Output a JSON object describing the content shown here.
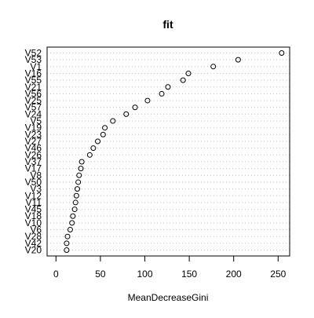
{
  "chart_data": {
    "type": "scatter",
    "title": "fit",
    "xlabel": "MeanDecreaseGini",
    "ylabel": "",
    "xlim": [
      -10,
      263
    ],
    "xticks": [
      0,
      50,
      100,
      150,
      200,
      250
    ],
    "grid": "dotted horizontal guide lines per variable",
    "legend": "none",
    "categories": [
      "V52",
      "V53",
      "V1",
      "V16",
      "V55",
      "V21",
      "V56",
      "V25",
      "V57",
      "V24",
      "V5",
      "V19",
      "V23",
      "V27",
      "V46",
      "V26",
      "V37",
      "V17",
      "V8",
      "V50",
      "V3",
      "V12",
      "V11",
      "V45",
      "V18",
      "V10",
      "V6",
      "V28",
      "V42",
      "V20"
    ],
    "values": [
      254,
      205,
      177,
      149,
      143,
      126,
      119,
      103,
      89,
      79,
      64,
      55,
      53,
      47,
      42,
      38,
      29,
      28,
      26,
      25,
      24,
      23,
      22,
      21,
      19,
      18,
      16,
      13,
      12,
      12
    ]
  },
  "colors": {
    "points": "#000000",
    "grid": "#bebebe",
    "axes": "#000000"
  }
}
